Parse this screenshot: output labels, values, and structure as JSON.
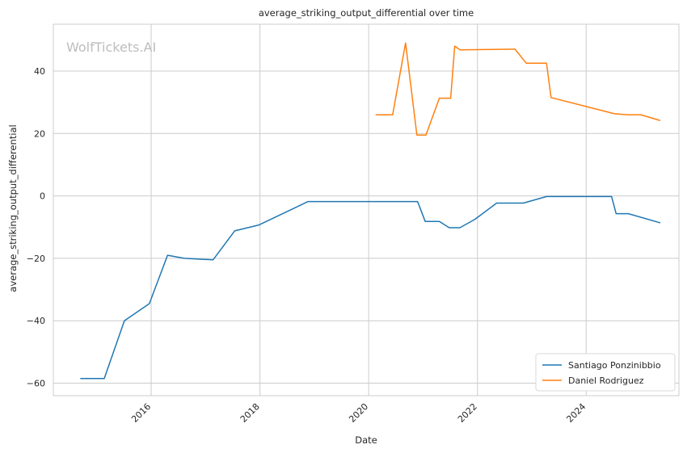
{
  "chart_data": {
    "type": "line",
    "title": "average_striking_output_differential over time",
    "xlabel": "Date",
    "ylabel": "average_striking_output_differential",
    "watermark": "WolfTickets.AI",
    "xlim": [
      "2014-03-15",
      "2025-09-15"
    ],
    "ylim": [
      -64,
      55
    ],
    "x_ticks": [
      {
        "date": "2016-01-01",
        "label": "2016"
      },
      {
        "date": "2018-01-01",
        "label": "2018"
      },
      {
        "date": "2020-01-01",
        "label": "2020"
      },
      {
        "date": "2022-01-01",
        "label": "2022"
      },
      {
        "date": "2024-01-01",
        "label": "2024"
      }
    ],
    "y_ticks": [
      {
        "value": 40,
        "label": "40"
      },
      {
        "value": 20,
        "label": "20"
      },
      {
        "value": 0,
        "label": "0"
      },
      {
        "value": -20,
        "label": "−20"
      },
      {
        "value": -40,
        "label": "−40"
      },
      {
        "value": -60,
        "label": "−60"
      }
    ],
    "grid": true,
    "legend_position": "lower-right",
    "series": [
      {
        "name": "Santiago Ponzinibbio",
        "color": "#1f77b4",
        "points": [
          [
            "2014-09-15",
            -58.5
          ],
          [
            "2015-02-20",
            -58.5
          ],
          [
            "2015-07-05",
            -40.0
          ],
          [
            "2015-12-20",
            -34.5
          ],
          [
            "2016-04-20",
            -19.0
          ],
          [
            "2016-08-10",
            -20.0
          ],
          [
            "2017-02-20",
            -20.5
          ],
          [
            "2017-07-15",
            -11.2
          ],
          [
            "2017-12-25",
            -9.3
          ],
          [
            "2018-11-20",
            -1.8
          ],
          [
            "2020-11-25",
            -1.8
          ],
          [
            "2021-01-15",
            -8.2
          ],
          [
            "2021-04-20",
            -8.2
          ],
          [
            "2021-06-25",
            -10.2
          ],
          [
            "2021-09-05",
            -10.2
          ],
          [
            "2021-12-15",
            -7.5
          ],
          [
            "2022-05-10",
            -2.3
          ],
          [
            "2022-11-05",
            -2.3
          ],
          [
            "2023-04-10",
            -0.2
          ],
          [
            "2024-06-20",
            -0.2
          ],
          [
            "2024-07-20",
            -5.7
          ],
          [
            "2024-10-10",
            -5.7
          ],
          [
            "2025-05-10",
            -8.6
          ]
        ]
      },
      {
        "name": "Daniel Rodriguez",
        "color": "#ff7f0e",
        "points": [
          [
            "2020-02-20",
            26.0
          ],
          [
            "2020-06-10",
            26.0
          ],
          [
            "2020-09-05",
            49.0
          ],
          [
            "2020-11-20",
            19.5
          ],
          [
            "2021-01-20",
            19.5
          ],
          [
            "2021-04-20",
            31.3
          ],
          [
            "2021-07-05",
            31.3
          ],
          [
            "2021-08-01",
            48.0
          ],
          [
            "2021-09-05",
            46.8
          ],
          [
            "2022-09-10",
            47.0
          ],
          [
            "2022-11-25",
            42.5
          ],
          [
            "2023-04-10",
            42.5
          ],
          [
            "2023-05-10",
            31.5
          ],
          [
            "2024-07-10",
            26.3
          ],
          [
            "2024-10-10",
            26.0
          ],
          [
            "2025-01-01",
            26.0
          ],
          [
            "2025-05-10",
            24.2
          ]
        ]
      }
    ]
  }
}
